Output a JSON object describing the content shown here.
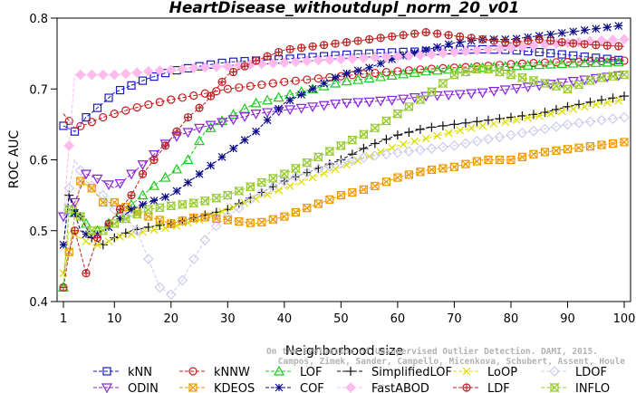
{
  "chart_data": {
    "type": "line",
    "title": "HeartDisease_withoutdupl_norm_20_v01",
    "xlabel": "Neighborhood size",
    "ylabel": "ROC AUC",
    "xlim": [
      1,
      100
    ],
    "ylim": [
      0.4,
      0.8
    ],
    "xticks": [
      "1",
      "10",
      "20",
      "30",
      "40",
      "50",
      "60",
      "70",
      "80",
      "90",
      "100"
    ],
    "yticks": [
      "0.4",
      "0.5",
      "0.6",
      "0.7",
      "0.8"
    ],
    "grid": false,
    "legend_position": "bottom",
    "credit_lines": [
      "Campos, Zimek, Sander, Campello, Micenkova, Schubert, Assent, Houle",
      "On the Evaluation of Unsupervised Outlier Detection. DAMI, 2015."
    ],
    "series": [
      {
        "name": "kNN",
        "color": "#1a1acc",
        "marker": "square",
        "points": [
          [
            1,
            0.648
          ],
          [
            3,
            0.64
          ],
          [
            5,
            0.66
          ],
          [
            8,
            0.68
          ],
          [
            10,
            0.695
          ],
          [
            13,
            0.705
          ],
          [
            16,
            0.715
          ],
          [
            20,
            0.725
          ],
          [
            25,
            0.732
          ],
          [
            30,
            0.738
          ],
          [
            35,
            0.74
          ],
          [
            40,
            0.742
          ],
          [
            45,
            0.745
          ],
          [
            50,
            0.748
          ],
          [
            55,
            0.75
          ],
          [
            60,
            0.752
          ],
          [
            65,
            0.753
          ],
          [
            70,
            0.755
          ],
          [
            75,
            0.756
          ],
          [
            80,
            0.755
          ],
          [
            85,
            0.752
          ],
          [
            90,
            0.748
          ],
          [
            95,
            0.744
          ],
          [
            100,
            0.74
          ]
        ]
      },
      {
        "name": "kNNW",
        "color": "#cc1a1a",
        "marker": "circle",
        "points": [
          [
            1,
            0.665
          ],
          [
            3,
            0.645
          ],
          [
            5,
            0.65
          ],
          [
            8,
            0.66
          ],
          [
            10,
            0.665
          ],
          [
            13,
            0.672
          ],
          [
            16,
            0.678
          ],
          [
            20,
            0.685
          ],
          [
            25,
            0.692
          ],
          [
            30,
            0.7
          ],
          [
            35,
            0.705
          ],
          [
            40,
            0.71
          ],
          [
            45,
            0.714
          ],
          [
            50,
            0.718
          ],
          [
            55,
            0.722
          ],
          [
            60,
            0.725
          ],
          [
            65,
            0.728
          ],
          [
            70,
            0.73
          ],
          [
            75,
            0.732
          ],
          [
            80,
            0.735
          ],
          [
            85,
            0.737
          ],
          [
            90,
            0.738
          ],
          [
            95,
            0.739
          ],
          [
            100,
            0.74
          ]
        ]
      },
      {
        "name": "LOF",
        "color": "#1acc1a",
        "marker": "triangle-up",
        "points": [
          [
            1,
            0.42
          ],
          [
            2,
            0.53
          ],
          [
            4,
            0.52
          ],
          [
            6,
            0.5
          ],
          [
            8,
            0.5
          ],
          [
            10,
            0.52
          ],
          [
            12,
            0.53
          ],
          [
            15,
            0.55
          ],
          [
            18,
            0.57
          ],
          [
            20,
            0.58
          ],
          [
            23,
            0.6
          ],
          [
            26,
            0.64
          ],
          [
            30,
            0.66
          ],
          [
            35,
            0.68
          ],
          [
            40,
            0.69
          ],
          [
            45,
            0.7
          ],
          [
            50,
            0.71
          ],
          [
            55,
            0.715
          ],
          [
            60,
            0.72
          ],
          [
            65,
            0.725
          ],
          [
            70,
            0.728
          ],
          [
            75,
            0.73
          ],
          [
            80,
            0.732
          ],
          [
            85,
            0.734
          ],
          [
            90,
            0.736
          ],
          [
            95,
            0.737
          ],
          [
            100,
            0.738
          ]
        ]
      },
      {
        "name": "SimplifiedLOF",
        "color": "#111111",
        "marker": "plus",
        "points": [
          [
            1,
            0.48
          ],
          [
            2,
            0.55
          ],
          [
            4,
            0.52
          ],
          [
            6,
            0.49
          ],
          [
            8,
            0.48
          ],
          [
            10,
            0.49
          ],
          [
            13,
            0.5
          ],
          [
            16,
            0.505
          ],
          [
            20,
            0.51
          ],
          [
            25,
            0.52
          ],
          [
            30,
            0.53
          ],
          [
            35,
            0.55
          ],
          [
            40,
            0.57
          ],
          [
            45,
            0.585
          ],
          [
            50,
            0.6
          ],
          [
            55,
            0.62
          ],
          [
            60,
            0.635
          ],
          [
            65,
            0.645
          ],
          [
            70,
            0.65
          ],
          [
            75,
            0.655
          ],
          [
            80,
            0.66
          ],
          [
            85,
            0.665
          ],
          [
            90,
            0.675
          ],
          [
            95,
            0.683
          ],
          [
            100,
            0.69
          ]
        ]
      },
      {
        "name": "LoOP",
        "color": "#dddd00",
        "marker": "x",
        "points": [
          [
            1,
            0.44
          ],
          [
            2,
            0.5
          ],
          [
            4,
            0.49
          ],
          [
            6,
            0.48
          ],
          [
            8,
            0.48
          ],
          [
            10,
            0.49
          ],
          [
            13,
            0.495
          ],
          [
            16,
            0.5
          ],
          [
            20,
            0.505
          ],
          [
            25,
            0.515
          ],
          [
            30,
            0.53
          ],
          [
            35,
            0.545
          ],
          [
            40,
            0.56
          ],
          [
            45,
            0.575
          ],
          [
            50,
            0.59
          ],
          [
            55,
            0.605
          ],
          [
            60,
            0.62
          ],
          [
            65,
            0.63
          ],
          [
            70,
            0.64
          ],
          [
            75,
            0.648
          ],
          [
            80,
            0.655
          ],
          [
            85,
            0.662
          ],
          [
            90,
            0.67
          ],
          [
            95,
            0.678
          ],
          [
            100,
            0.685
          ]
        ]
      },
      {
        "name": "LDOF",
        "color": "#ccccee",
        "marker": "diamond",
        "points": [
          [
            1,
            0.52
          ],
          [
            3,
            0.6
          ],
          [
            5,
            0.57
          ],
          [
            8,
            0.55
          ],
          [
            10,
            0.53
          ],
          [
            12,
            0.52
          ],
          [
            14,
            0.5
          ],
          [
            16,
            0.46
          ],
          [
            18,
            0.42
          ],
          [
            20,
            0.41
          ],
          [
            22,
            0.43
          ],
          [
            24,
            0.46
          ],
          [
            27,
            0.5
          ],
          [
            30,
            0.52
          ],
          [
            35,
            0.55
          ],
          [
            40,
            0.57
          ],
          [
            45,
            0.585
          ],
          [
            50,
            0.595
          ],
          [
            55,
            0.605
          ],
          [
            60,
            0.61
          ],
          [
            65,
            0.615
          ],
          [
            70,
            0.62
          ],
          [
            75,
            0.628
          ],
          [
            80,
            0.635
          ],
          [
            85,
            0.642
          ],
          [
            90,
            0.65
          ],
          [
            95,
            0.655
          ],
          [
            100,
            0.66
          ]
        ]
      },
      {
        "name": "ODIN",
        "color": "#8822dd",
        "marker": "triangle-down",
        "points": [
          [
            1,
            0.52
          ],
          [
            3,
            0.54
          ],
          [
            5,
            0.58
          ],
          [
            8,
            0.57
          ],
          [
            10,
            0.56
          ],
          [
            13,
            0.58
          ],
          [
            16,
            0.6
          ],
          [
            20,
            0.63
          ],
          [
            25,
            0.645
          ],
          [
            30,
            0.655
          ],
          [
            35,
            0.665
          ],
          [
            40,
            0.67
          ],
          [
            45,
            0.675
          ],
          [
            50,
            0.68
          ],
          [
            55,
            0.682
          ],
          [
            60,
            0.685
          ],
          [
            65,
            0.69
          ],
          [
            70,
            0.692
          ],
          [
            75,
            0.695
          ],
          [
            80,
            0.7
          ],
          [
            85,
            0.705
          ],
          [
            90,
            0.71
          ],
          [
            95,
            0.715
          ],
          [
            100,
            0.72
          ]
        ]
      },
      {
        "name": "KDEOS",
        "color": "#ee9900",
        "marker": "square-x",
        "points": [
          [
            1,
            0.44
          ],
          [
            2,
            0.47
          ],
          [
            4,
            0.57
          ],
          [
            6,
            0.56
          ],
          [
            8,
            0.54
          ],
          [
            10,
            0.54
          ],
          [
            13,
            0.53
          ],
          [
            16,
            0.52
          ],
          [
            20,
            0.51
          ],
          [
            25,
            0.52
          ],
          [
            30,
            0.515
          ],
          [
            35,
            0.51
          ],
          [
            40,
            0.52
          ],
          [
            45,
            0.535
          ],
          [
            50,
            0.55
          ],
          [
            55,
            0.56
          ],
          [
            60,
            0.575
          ],
          [
            65,
            0.585
          ],
          [
            70,
            0.59
          ],
          [
            75,
            0.6
          ],
          [
            80,
            0.6
          ],
          [
            85,
            0.61
          ],
          [
            90,
            0.615
          ],
          [
            95,
            0.62
          ],
          [
            100,
            0.625
          ]
        ]
      },
      {
        "name": "COF",
        "color": "#0a0a88",
        "marker": "asterisk",
        "points": [
          [
            1,
            0.48
          ],
          [
            2,
            0.55
          ],
          [
            4,
            0.5
          ],
          [
            6,
            0.49
          ],
          [
            8,
            0.5
          ],
          [
            10,
            0.51
          ],
          [
            13,
            0.53
          ],
          [
            16,
            0.54
          ],
          [
            20,
            0.55
          ],
          [
            25,
            0.58
          ],
          [
            30,
            0.61
          ],
          [
            35,
            0.64
          ],
          [
            40,
            0.68
          ],
          [
            45,
            0.7
          ],
          [
            50,
            0.72
          ],
          [
            55,
            0.73
          ],
          [
            60,
            0.745
          ],
          [
            65,
            0.755
          ],
          [
            70,
            0.765
          ],
          [
            75,
            0.77
          ],
          [
            80,
            0.77
          ],
          [
            85,
            0.775
          ],
          [
            90,
            0.78
          ],
          [
            95,
            0.785
          ],
          [
            100,
            0.79
          ]
        ]
      },
      {
        "name": "FastABOD",
        "color": "#ffbbee",
        "marker": "diamond-filled",
        "points": [
          [
            1,
            0.52
          ],
          [
            3,
            0.72
          ],
          [
            5,
            0.72
          ],
          [
            8,
            0.72
          ],
          [
            10,
            0.72
          ],
          [
            13,
            0.722
          ],
          [
            16,
            0.725
          ],
          [
            20,
            0.727
          ],
          [
            25,
            0.73
          ],
          [
            30,
            0.732
          ],
          [
            35,
            0.735
          ],
          [
            40,
            0.737
          ],
          [
            45,
            0.74
          ],
          [
            50,
            0.742
          ],
          [
            55,
            0.744
          ],
          [
            60,
            0.746
          ],
          [
            65,
            0.748
          ],
          [
            70,
            0.752
          ],
          [
            75,
            0.755
          ],
          [
            80,
            0.758
          ],
          [
            85,
            0.762
          ],
          [
            90,
            0.765
          ],
          [
            95,
            0.768
          ],
          [
            100,
            0.77
          ]
        ]
      },
      {
        "name": "LDF",
        "color": "#bb2222",
        "marker": "circle-plus",
        "points": [
          [
            1,
            0.42
          ],
          [
            2,
            0.47
          ],
          [
            3,
            0.5
          ],
          [
            5,
            0.44
          ],
          [
            7,
            0.49
          ],
          [
            9,
            0.51
          ],
          [
            11,
            0.53
          ],
          [
            13,
            0.55
          ],
          [
            15,
            0.58
          ],
          [
            17,
            0.6
          ],
          [
            20,
            0.63
          ],
          [
            23,
            0.66
          ],
          [
            26,
            0.68
          ],
          [
            30,
            0.72
          ],
          [
            35,
            0.74
          ],
          [
            40,
            0.755
          ],
          [
            45,
            0.76
          ],
          [
            50,
            0.765
          ],
          [
            55,
            0.77
          ],
          [
            60,
            0.775
          ],
          [
            65,
            0.78
          ],
          [
            70,
            0.775
          ],
          [
            75,
            0.77
          ],
          [
            80,
            0.765
          ],
          [
            85,
            0.77
          ],
          [
            90,
            0.765
          ],
          [
            95,
            0.762
          ],
          [
            100,
            0.76
          ]
        ]
      },
      {
        "name": "INFLO",
        "color": "#99cc33",
        "marker": "hourglass",
        "points": [
          [
            1,
            0.42
          ],
          [
            2,
            0.53
          ],
          [
            4,
            0.52
          ],
          [
            6,
            0.5
          ],
          [
            8,
            0.5
          ],
          [
            10,
            0.51
          ],
          [
            13,
            0.52
          ],
          [
            16,
            0.53
          ],
          [
            20,
            0.535
          ],
          [
            25,
            0.54
          ],
          [
            30,
            0.55
          ],
          [
            35,
            0.565
          ],
          [
            40,
            0.58
          ],
          [
            45,
            0.6
          ],
          [
            50,
            0.62
          ],
          [
            55,
            0.64
          ],
          [
            60,
            0.665
          ],
          [
            65,
            0.69
          ],
          [
            70,
            0.72
          ],
          [
            75,
            0.73
          ],
          [
            80,
            0.72
          ],
          [
            85,
            0.71
          ],
          [
            90,
            0.7
          ],
          [
            95,
            0.715
          ],
          [
            100,
            0.72
          ]
        ]
      }
    ]
  }
}
